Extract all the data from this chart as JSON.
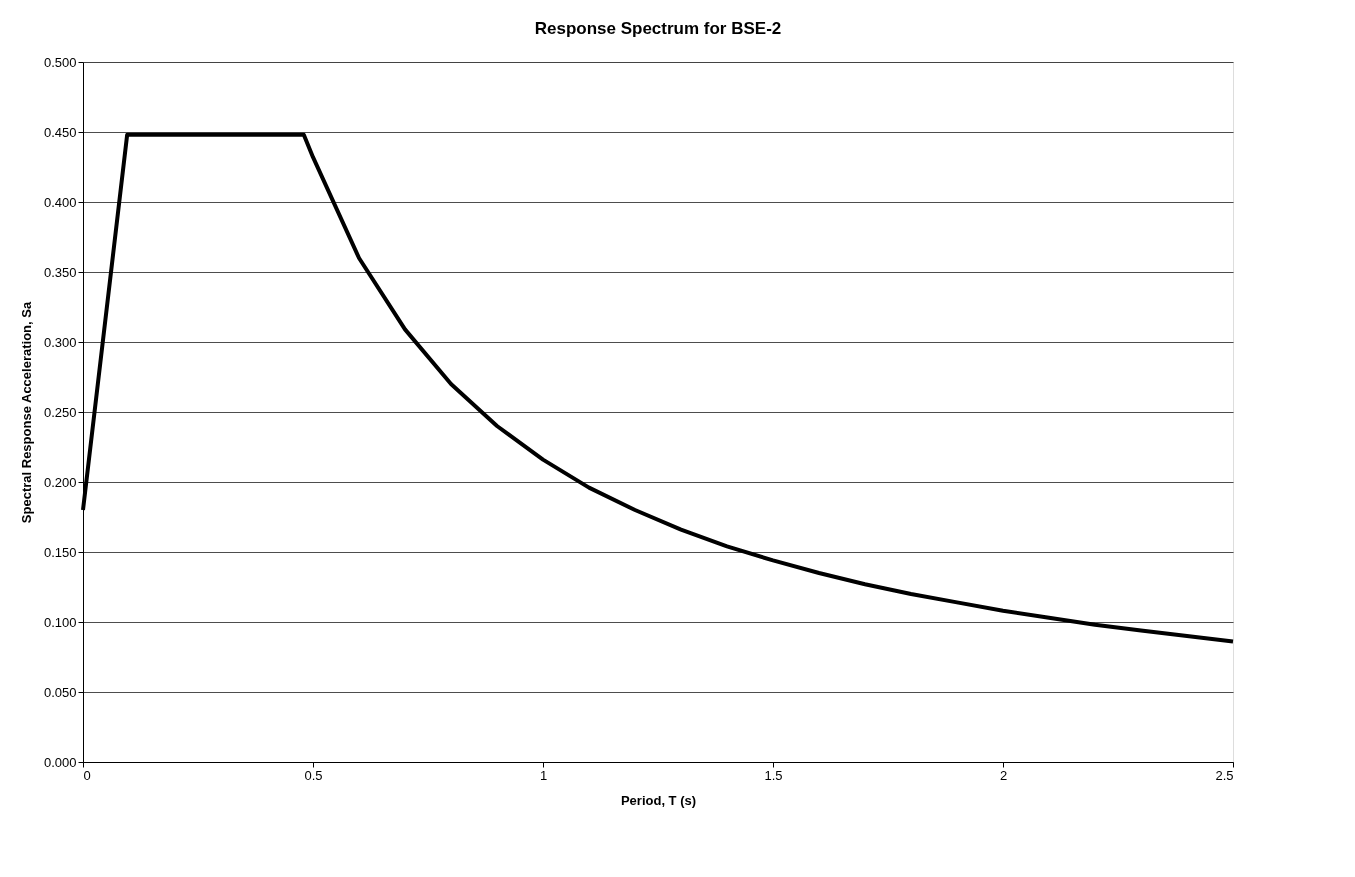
{
  "chart_data": {
    "type": "line",
    "title": "Response Spectrum for BSE-2",
    "xlabel": "Period, T (s)",
    "ylabel": "Spectral Response Acceleration, Sa",
    "series": [
      {
        "color": "#000000",
        "x": [
          0,
          0.096,
          0.48,
          0.5,
          0.6,
          0.7,
          0.8,
          0.9,
          1.0,
          1.1,
          1.2,
          1.3,
          1.4,
          1.5,
          1.6,
          1.7,
          1.8,
          1.9,
          2.0,
          2.1,
          2.2,
          2.3,
          2.4,
          2.5
        ],
        "values": [
          0.18,
          0.448,
          0.448,
          0.432,
          0.36,
          0.309,
          0.27,
          0.24,
          0.216,
          0.196,
          0.18,
          0.166,
          0.154,
          0.144,
          0.135,
          0.127,
          0.12,
          0.114,
          0.108,
          0.103,
          0.098,
          0.094,
          0.09,
          0.086
        ]
      }
    ],
    "xlim": [
      0,
      2.5
    ],
    "xticks": [
      0,
      0.5,
      1,
      1.5,
      2,
      2.5
    ],
    "ylim": [
      0,
      0.5
    ],
    "yticks": [
      {
        "value": 0,
        "label": "0.000"
      },
      {
        "value": 0.05,
        "label": "0.050"
      },
      {
        "value": 0.1,
        "label": "0.100"
      },
      {
        "value": 0.15,
        "label": "0.150"
      },
      {
        "value": 0.2,
        "label": "0.200"
      },
      {
        "value": 0.25,
        "label": "0.250"
      },
      {
        "value": 0.3,
        "label": "0.300"
      },
      {
        "value": 0.35,
        "label": "0.350"
      },
      {
        "value": 0.4,
        "label": "0.400"
      },
      {
        "value": 0.45,
        "label": "0.450"
      },
      {
        "value": 0.5,
        "label": "0.500"
      }
    ],
    "grid": "y",
    "marker": "none",
    "line_style": "solid"
  }
}
